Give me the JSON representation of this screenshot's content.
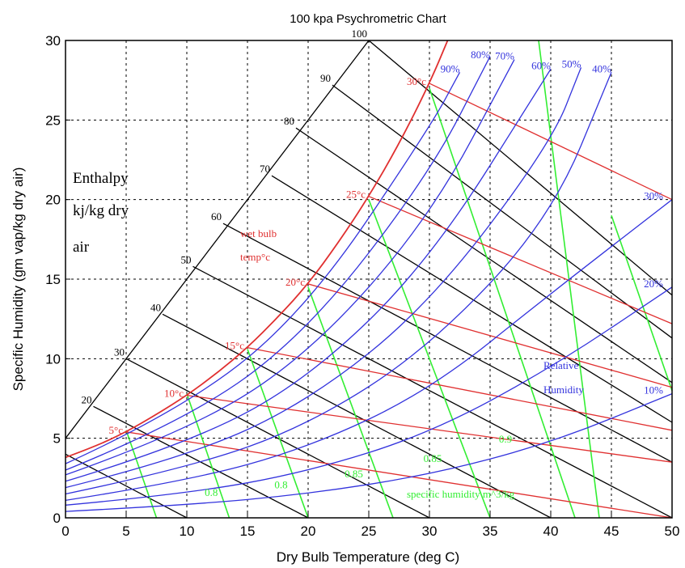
{
  "chart_data": {
    "type": "line",
    "title": "100 kpa Psychrometric Chart",
    "xlabel": "Dry Bulb Temperature (deg C)",
    "ylabel": "Specific Humidity (gm vap/kg dry air)",
    "xlim": [
      0,
      50
    ],
    "ylim": [
      0,
      30
    ],
    "x_ticks": [
      "0",
      "5",
      "10",
      "15",
      "20",
      "25",
      "30",
      "35",
      "40",
      "45",
      "50"
    ],
    "y_ticks": [
      "0",
      "5",
      "10",
      "15",
      "20",
      "25",
      "30"
    ],
    "grid": true,
    "colors": {
      "saturation": "#e03030",
      "wet_bulb": "#e03030",
      "relative_humidity": "#3333dd",
      "enthalpy": "#000000",
      "specific_volume": "#33ee33"
    },
    "saturation_curve": {
      "x": [
        0,
        2.5,
        5,
        7.5,
        10,
        12.5,
        15,
        17.5,
        20,
        22.5,
        25,
        27.5,
        30,
        31.5
      ],
      "y": [
        3.8,
        4.5,
        5.4,
        6.5,
        7.7,
        9.1,
        10.7,
        12.6,
        14.7,
        17.3,
        20.2,
        23.5,
        27.3,
        30.0
      ]
    },
    "relative_humidity_curves": [
      {
        "label": "90%",
        "x": [
          0,
          10,
          20,
          30,
          32.5
        ],
        "y": [
          3.4,
          6.9,
          13.2,
          24.5,
          28.0
        ]
      },
      {
        "label": "80%",
        "x": [
          0,
          10,
          20,
          30,
          35
        ],
        "y": [
          3.0,
          6.1,
          11.7,
          21.6,
          29.0
        ]
      },
      {
        "label": "70%",
        "x": [
          0,
          10,
          20,
          30,
          37
        ],
        "y": [
          2.7,
          5.4,
          10.2,
          18.8,
          28.8
        ]
      },
      {
        "label": "60%",
        "x": [
          0,
          10,
          20,
          30,
          40
        ],
        "y": [
          2.3,
          4.6,
          8.7,
          16.1,
          28.2
        ]
      },
      {
        "label": "50%",
        "x": [
          0,
          10,
          20,
          30,
          40,
          42.5
        ],
        "y": [
          1.9,
          3.8,
          7.3,
          13.4,
          23.5,
          28.3
        ]
      },
      {
        "label": "40%",
        "x": [
          0,
          10,
          20,
          30,
          40,
          45
        ],
        "y": [
          1.5,
          3.1,
          5.8,
          10.7,
          18.8,
          28.0
        ]
      },
      {
        "label": "30%",
        "x": [
          0,
          10,
          20,
          30,
          40,
          50
        ],
        "y": [
          1.1,
          2.3,
          4.4,
          8.0,
          14.1,
          20.0
        ]
      },
      {
        "label": "20%",
        "x": [
          0,
          10,
          20,
          30,
          40,
          50
        ],
        "y": [
          0.8,
          1.5,
          2.9,
          5.3,
          9.4,
          14.5
        ]
      },
      {
        "label": "10%",
        "x": [
          0,
          10,
          20,
          30,
          40,
          50
        ],
        "y": [
          0.4,
          0.8,
          1.5,
          2.7,
          4.7,
          7.8
        ]
      }
    ],
    "enthalpy_lines": [
      {
        "label": "",
        "x": [
          0,
          10
        ],
        "y": [
          4.0,
          0
        ]
      },
      {
        "label": "20",
        "x": [
          2.3,
          20
        ],
        "y": [
          7.0,
          0
        ]
      },
      {
        "label": "30",
        "x": [
          5,
          30
        ],
        "y": [
          10.0,
          0
        ]
      },
      {
        "label": "40",
        "x": [
          8,
          40
        ],
        "y": [
          12.8,
          0
        ]
      },
      {
        "label": "50",
        "x": [
          10.5,
          50
        ],
        "y": [
          15.8,
          0
        ]
      },
      {
        "label": "60",
        "x": [
          13,
          50
        ],
        "y": [
          18.5,
          3.5
        ]
      },
      {
        "label": "70",
        "x": [
          17,
          50
        ],
        "y": [
          21.5,
          6.0
        ]
      },
      {
        "label": "80",
        "x": [
          19,
          50
        ],
        "y": [
          24.5,
          8.5
        ]
      },
      {
        "label": "90",
        "x": [
          22,
          50
        ],
        "y": [
          27.2,
          11.3
        ]
      },
      {
        "label": "100",
        "x": [
          25,
          50
        ],
        "y": [
          30.0,
          14.0
        ]
      }
    ],
    "enthalpy_boundary": {
      "x": [
        0,
        25
      ],
      "y": [
        5.0,
        30.0
      ]
    },
    "wet_bulb_lines": [
      {
        "label": "5°c",
        "x": [
          5,
          50
        ],
        "y": [
          5.4,
          0
        ]
      },
      {
        "label": "10°c",
        "x": [
          10,
          50
        ],
        "y": [
          7.7,
          3.5
        ]
      },
      {
        "label": "15°c",
        "x": [
          15,
          50
        ],
        "y": [
          10.7,
          5.5
        ]
      },
      {
        "label": "20°c",
        "x": [
          20,
          50
        ],
        "y": [
          14.7,
          8.2
        ]
      },
      {
        "label": "25°c",
        "x": [
          25,
          50
        ],
        "y": [
          20.2,
          12.2
        ]
      },
      {
        "label": "30°c",
        "x": [
          30,
          50
        ],
        "y": [
          27.3,
          20.0
        ]
      }
    ],
    "specific_volume_lines": [
      {
        "label": "",
        "x": [
          5,
          7.5
        ],
        "y": [
          5.5,
          0
        ]
      },
      {
        "label": "0.8",
        "x": [
          10,
          13.5
        ],
        "y": [
          7.8,
          0
        ]
      },
      {
        "label": "0.8",
        "x": [
          15,
          20
        ],
        "y": [
          10.6,
          0
        ]
      },
      {
        "label": "0.85",
        "x": [
          20,
          27
        ],
        "y": [
          14.5,
          0
        ]
      },
      {
        "label": "0.85",
        "x": [
          25,
          35
        ],
        "y": [
          20.0,
          0
        ]
      },
      {
        "label": "0.9",
        "x": [
          30,
          42
        ],
        "y": [
          27.0,
          0
        ]
      },
      {
        "label": "",
        "x": [
          39,
          44
        ],
        "y": [
          30.0,
          0
        ]
      },
      {
        "label": "",
        "x": [
          45,
          50
        ],
        "y": [
          19.0,
          8.0
        ]
      }
    ],
    "annotations": {
      "enthalpy_title_line1": "Enthalpy",
      "enthalpy_title_line2": "kj/kg dry",
      "enthalpy_title_line3": "air",
      "wet_bulb_title_line1": "wet bulb",
      "wet_bulb_title_line2": "temp°c",
      "rh_title_line1": "Relative",
      "rh_title_line2": "Humidity",
      "specific_volume_title": "specific humidity m^3/kg"
    }
  }
}
